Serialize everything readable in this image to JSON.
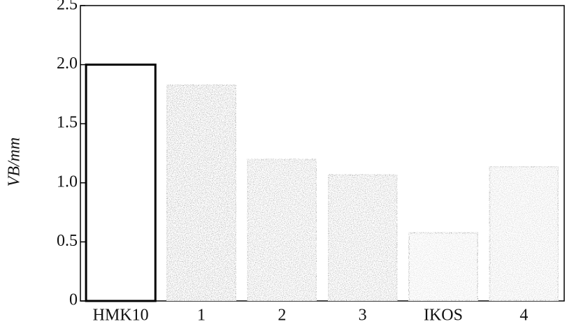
{
  "chart_data": {
    "type": "bar",
    "y_label": "VB/mm",
    "categories": [
      "HMK10",
      "1",
      "2",
      "3",
      "IKOS",
      "4"
    ],
    "values": [
      2.0,
      1.83,
      1.2,
      1.07,
      0.58,
      1.14
    ],
    "colors": [
      "#ffffff",
      "#8c8c8c",
      "#9a9a9a",
      "#9c9c9c",
      "#d2d2d2",
      "#c6c6c6"
    ],
    "ylim": [
      0,
      2.5
    ],
    "yticks": [
      0,
      {
        "value": 0.5,
        "label": "0.5"
      },
      {
        "value": 1.0,
        "label": "1.0"
      },
      {
        "value": 1.5,
        "label": "1.5"
      },
      {
        "value": 2.0,
        "label": "2.0"
      },
      2.5
    ],
    "grid": false
  }
}
